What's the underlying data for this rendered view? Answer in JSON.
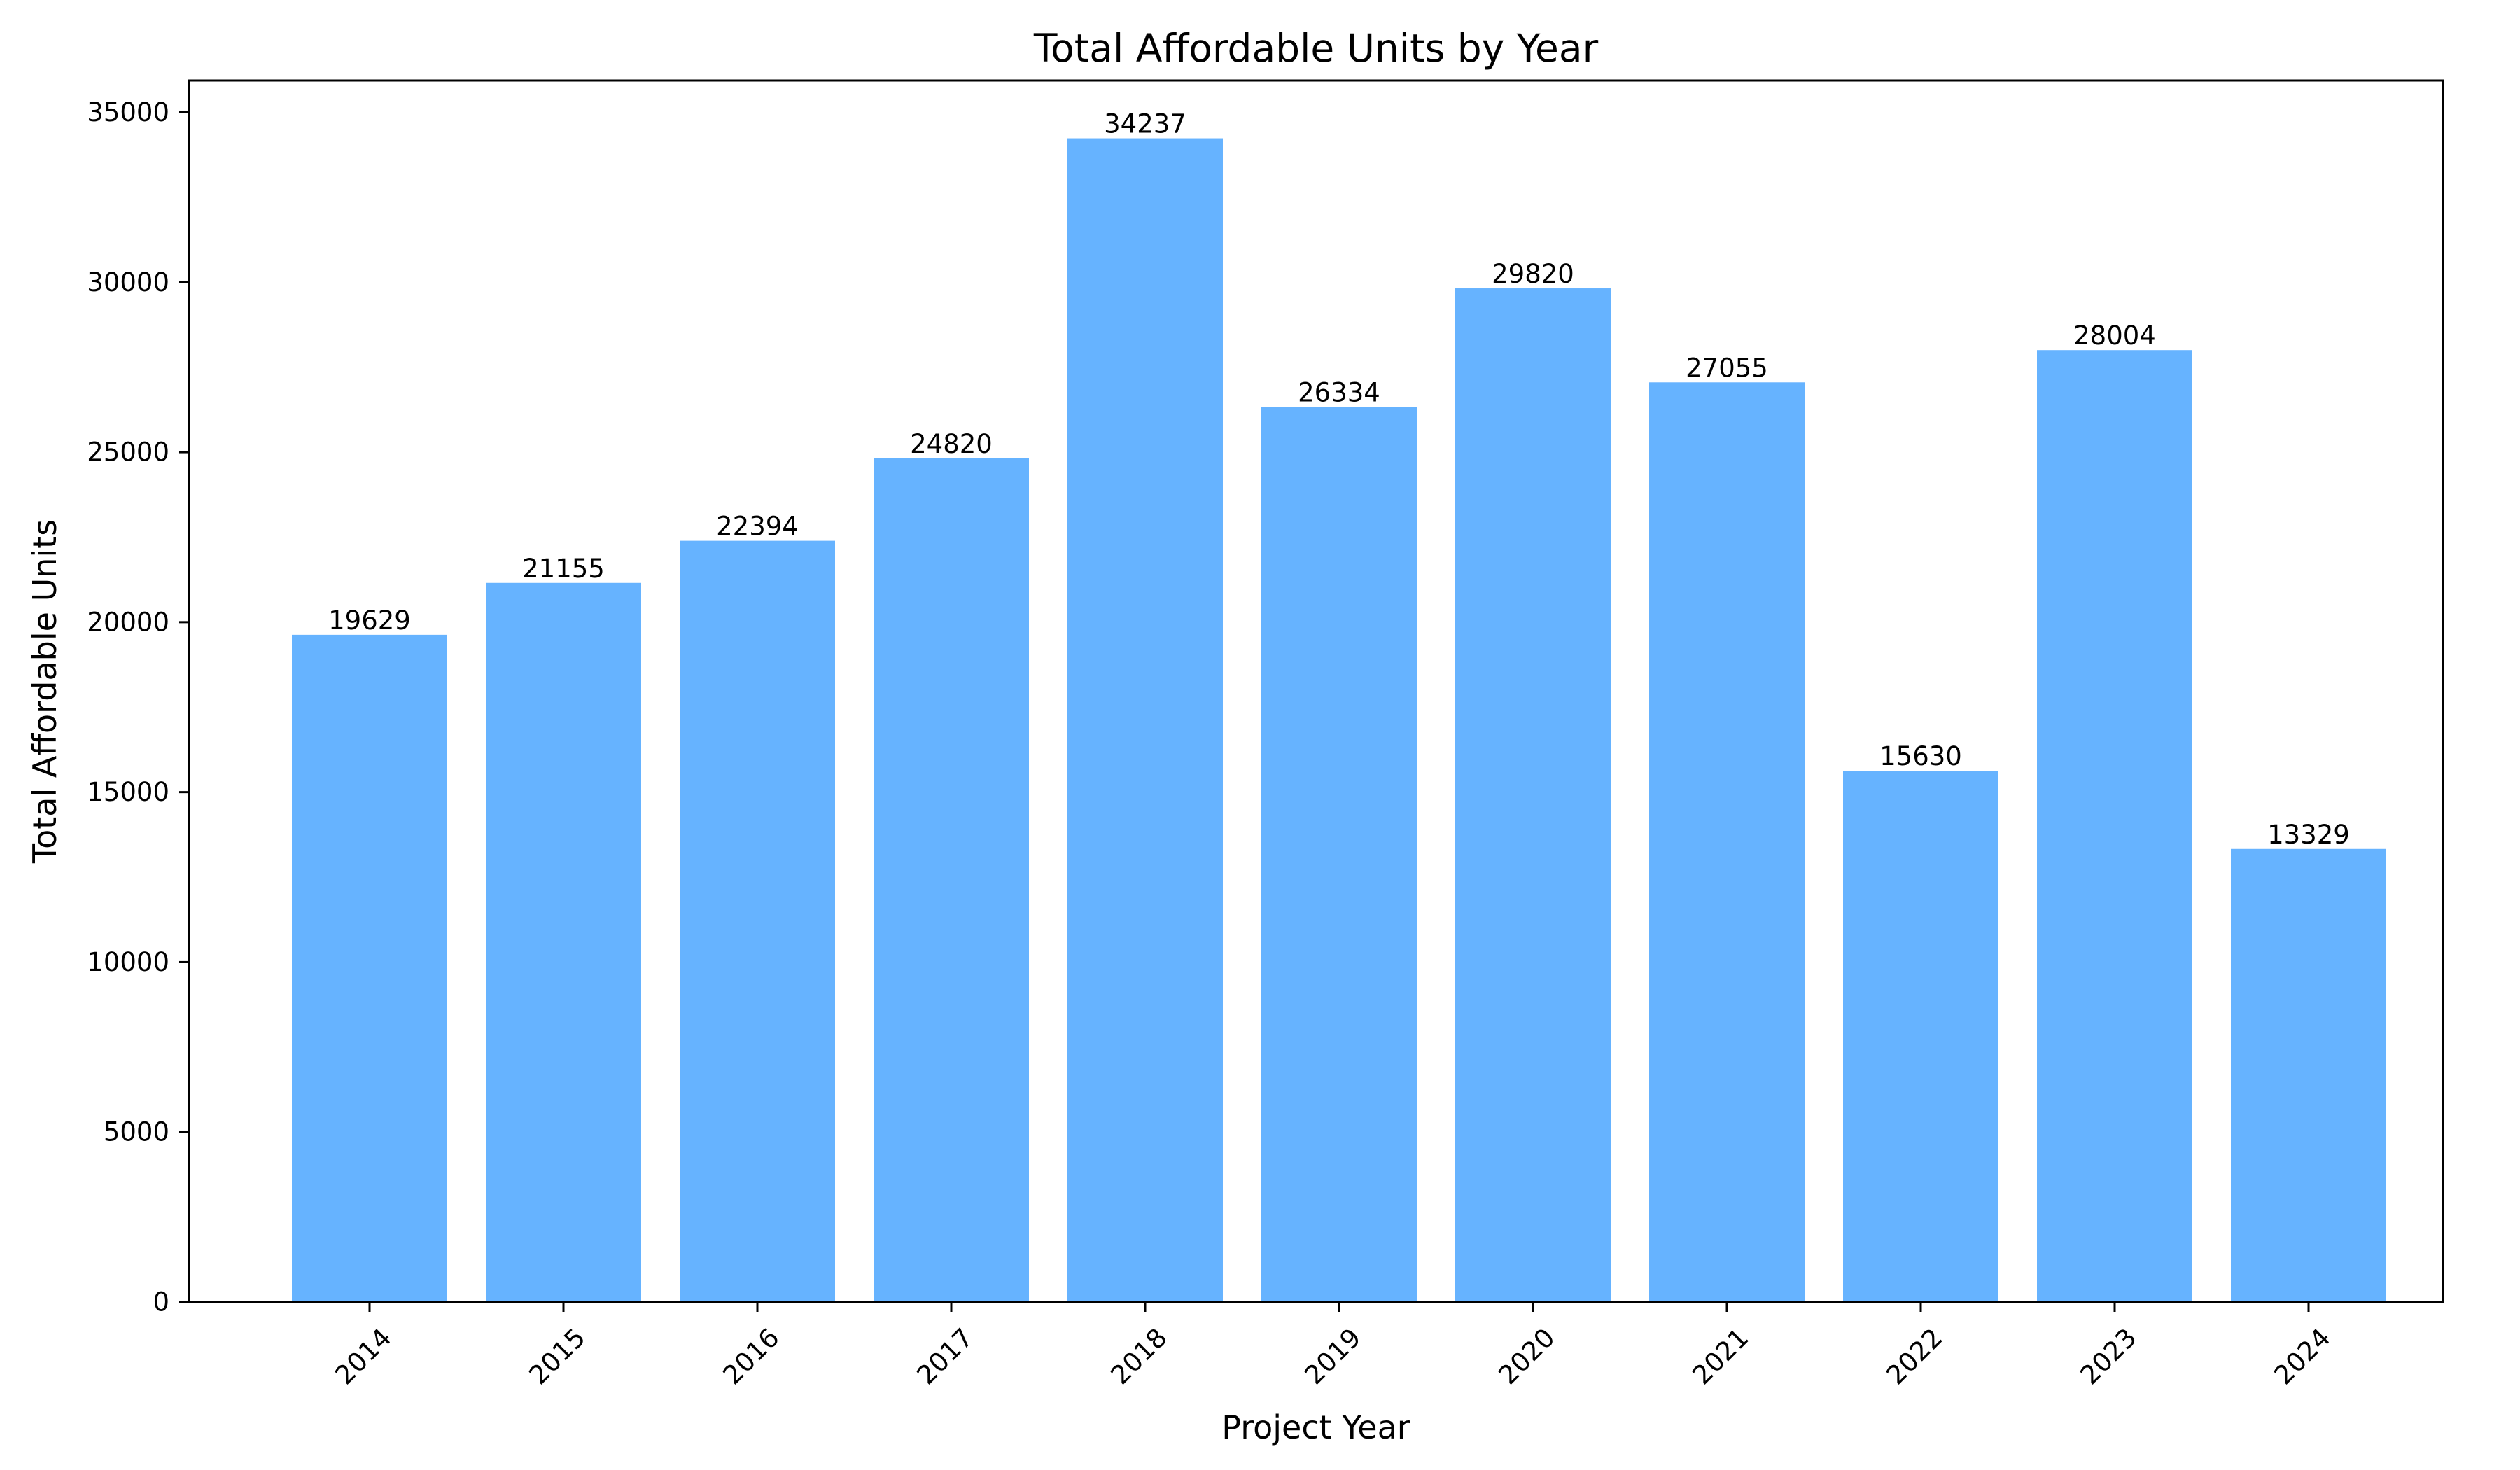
{
  "chart_data": {
    "type": "bar",
    "title": "Total Affordable Units by Year",
    "xlabel": "Project Year",
    "ylabel": "Total Affordable Units",
    "categories": [
      "2014",
      "2015",
      "2016",
      "2017",
      "2018",
      "2019",
      "2020",
      "2021",
      "2022",
      "2023",
      "2024"
    ],
    "values": [
      19629,
      21155,
      22394,
      24820,
      34237,
      26334,
      29820,
      27055,
      15630,
      28004,
      13329
    ],
    "data_labels": [
      "19629",
      "21155",
      "22394",
      "24820",
      "34237",
      "26334",
      "29820",
      "27055",
      "15630",
      "28004",
      "13329"
    ],
    "ylim": [
      0,
      35937
    ],
    "yticks": [
      0,
      5000,
      10000,
      15000,
      20000,
      25000,
      30000,
      35000
    ],
    "ytick_labels": [
      "0",
      "5000",
      "10000",
      "15000",
      "20000",
      "25000",
      "30000",
      "35000"
    ],
    "grid": false,
    "bar_color": "#66b3ff",
    "xtick_rotation_deg": 45
  }
}
